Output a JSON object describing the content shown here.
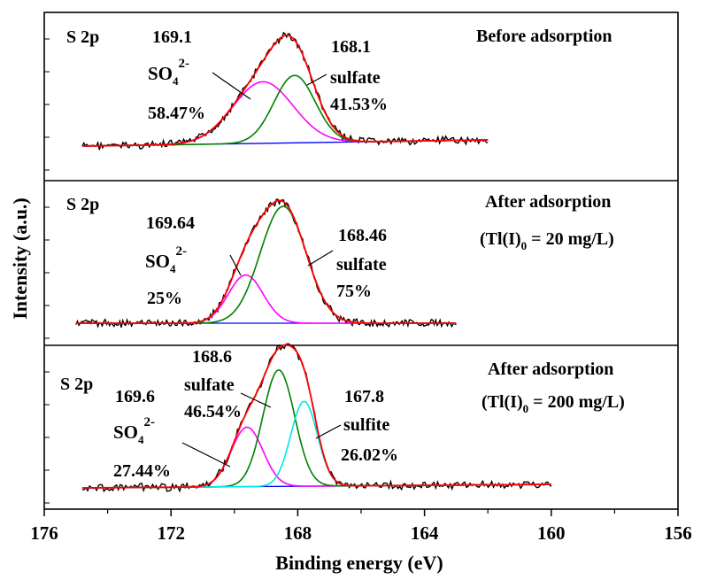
{
  "chart_data": {
    "type": "line",
    "xlabel": "Binding energy (eV)",
    "ylabel": "Intensity (a.u.)",
    "xlim": [
      176,
      156
    ],
    "x_ticks": [
      "176",
      "172",
      "168",
      "164",
      "160",
      "156"
    ],
    "x_ticks_values": [
      176,
      172,
      168,
      164,
      160,
      156
    ],
    "colors": {
      "raw": "#000000",
      "envelope": "#ff0000",
      "baseline": "#0000ff",
      "so4": "#ff00ff",
      "sulfate": "#008000",
      "sulfite": "#00e5e5"
    },
    "panels": [
      {
        "element": "S 2p",
        "condition": "Before adsorption",
        "condition2": "",
        "x_range": [
          174.8,
          162.0
        ],
        "peaks": [
          {
            "name": "SO42-",
            "center": 169.1,
            "amplitude": 0.62,
            "sigma": 0.95,
            "color": "#ff00ff"
          },
          {
            "name": "sulfate",
            "center": 168.1,
            "amplitude": 0.68,
            "sigma": 0.65,
            "color": "#008000"
          }
        ],
        "annotations": {
          "a_pos": "169.1",
          "a_species": "SO",
          "a_sub": "4",
          "a_sup": "2-",
          "a_pct": "58.47%",
          "b_pos": "168.1",
          "b_species": "sulfate",
          "b_pct": "41.53%",
          "c_pos": "",
          "c_species": "",
          "c_pct": ""
        }
      },
      {
        "element": "S 2p",
        "condition": "After adsorption",
        "condition2": "(Tl(I)0 = 20 mg/L)",
        "cond2_pre": "(Tl(I)",
        "cond2_sub": "0",
        "cond2_post": " = 20 mg/L)",
        "x_range": [
          175.0,
          163.0
        ],
        "peaks": [
          {
            "name": "SO42-",
            "center": 169.64,
            "amplitude": 0.4,
            "sigma": 0.55,
            "color": "#ff00ff"
          },
          {
            "name": "sulfate",
            "center": 168.46,
            "amplitude": 0.97,
            "sigma": 0.72,
            "color": "#008000"
          }
        ],
        "annotations": {
          "a_pos": "169.64",
          "a_species": "SO",
          "a_sub": "4",
          "a_sup": "2-",
          "a_pct": "25%",
          "b_pos": "168.46",
          "b_species": "sulfate",
          "b_pct": "75%",
          "c_pos": "",
          "c_species": "",
          "c_pct": ""
        }
      },
      {
        "element": "S 2p",
        "condition": "After adsorption",
        "condition2": "(Tl(I)0 = 200 mg/L)",
        "cond2_pre": "(Tl(I)",
        "cond2_sub": "0",
        "cond2_post": " = 200 mg/L)",
        "x_range": [
          174.8,
          160.0
        ],
        "peaks": [
          {
            "name": "SO42-",
            "center": 169.6,
            "amplitude": 0.47,
            "sigma": 0.5,
            "color": "#ff00ff"
          },
          {
            "name": "sulfate",
            "center": 168.6,
            "amplitude": 0.92,
            "sigma": 0.5,
            "color": "#008000"
          },
          {
            "name": "sulfite",
            "center": 167.8,
            "amplitude": 0.67,
            "sigma": 0.42,
            "color": "#00e5e5"
          }
        ],
        "annotations": {
          "a_pos": "169.6",
          "a_species": "SO",
          "a_sub": "4",
          "a_sup": "2-",
          "a_pct": "27.44%",
          "b_pos": "168.6",
          "b_species": "sulfate",
          "b_pct": "46.54%",
          "c_pos": "167.8",
          "c_species": "sulfite",
          "c_pct": "26.02%"
        }
      }
    ]
  }
}
